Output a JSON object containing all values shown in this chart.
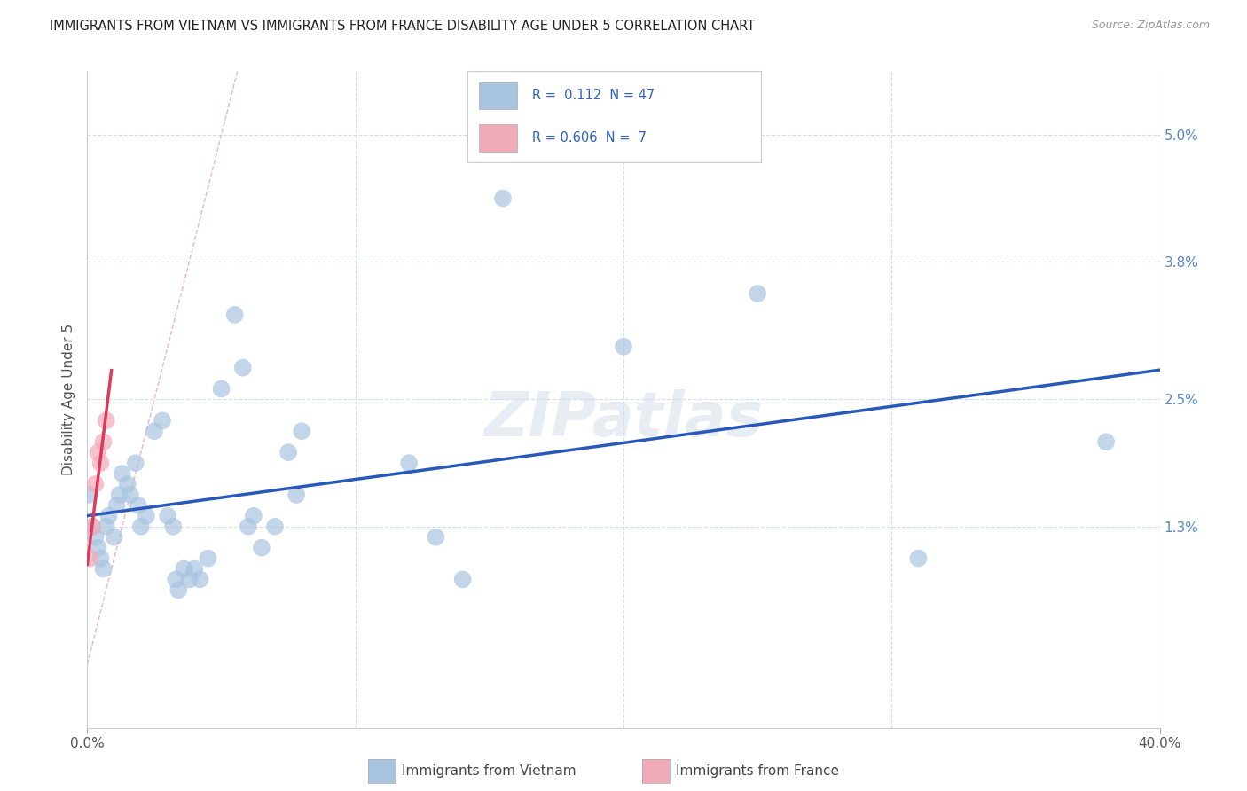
{
  "title": "IMMIGRANTS FROM VIETNAM VS IMMIGRANTS FROM FRANCE DISABILITY AGE UNDER 5 CORRELATION CHART",
  "source": "Source: ZipAtlas.com",
  "ylabel": "Disability Age Under 5",
  "ytick_labels": [
    "5.0%",
    "3.8%",
    "2.5%",
    "1.3%"
  ],
  "ytick_vals": [
    0.05,
    0.038,
    0.025,
    0.013
  ],
  "xlim": [
    0.0,
    0.4
  ],
  "ylim": [
    -0.006,
    0.056
  ],
  "r_vietnam": 0.112,
  "n_vietnam": 47,
  "r_france": 0.606,
  "n_france": 7,
  "vietnam_x": [
    0.001,
    0.002,
    0.003,
    0.004,
    0.005,
    0.006,
    0.007,
    0.008,
    0.01,
    0.011,
    0.012,
    0.013,
    0.015,
    0.016,
    0.018,
    0.019,
    0.02,
    0.022,
    0.025,
    0.028,
    0.03,
    0.032,
    0.033,
    0.034,
    0.036,
    0.038,
    0.04,
    0.042,
    0.045,
    0.05,
    0.055,
    0.058,
    0.06,
    0.062,
    0.065,
    0.07,
    0.075,
    0.078,
    0.08,
    0.12,
    0.13,
    0.14,
    0.155,
    0.2,
    0.25,
    0.31,
    0.38
  ],
  "vietnam_y": [
    0.016,
    0.013,
    0.012,
    0.011,
    0.01,
    0.009,
    0.013,
    0.014,
    0.012,
    0.015,
    0.016,
    0.018,
    0.017,
    0.016,
    0.019,
    0.015,
    0.013,
    0.014,
    0.022,
    0.023,
    0.014,
    0.013,
    0.008,
    0.007,
    0.009,
    0.008,
    0.009,
    0.008,
    0.01,
    0.026,
    0.033,
    0.028,
    0.013,
    0.014,
    0.011,
    0.013,
    0.02,
    0.016,
    0.022,
    0.019,
    0.012,
    0.008,
    0.044,
    0.03,
    0.035,
    0.01,
    0.021
  ],
  "france_x": [
    0.001,
    0.002,
    0.003,
    0.004,
    0.005,
    0.006,
    0.007
  ],
  "france_y": [
    0.01,
    0.013,
    0.017,
    0.02,
    0.019,
    0.021,
    0.023
  ],
  "vietnam_color": "#a8c4e0",
  "france_color": "#f0aab8",
  "trendline_vietnam_color": "#2858b8",
  "trendline_france_color": "#e03858",
  "diagonal_color": "#e8b0bc",
  "background_color": "#ffffff",
  "grid_color": "#d8dce8"
}
